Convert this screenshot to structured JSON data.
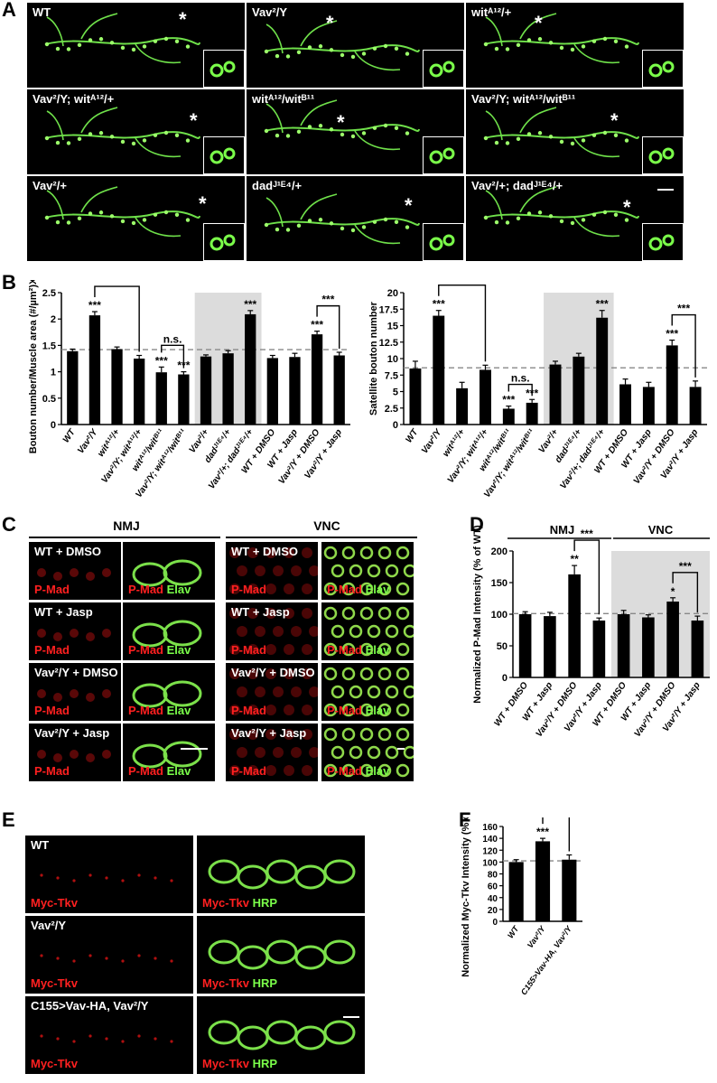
{
  "panel_letters": {
    "a": "A",
    "b": "B",
    "c": "C",
    "d": "D",
    "e": "E",
    "f": "F"
  },
  "panelA": {
    "tiles": [
      {
        "label": "WT",
        "star": "*"
      },
      {
        "label": "Vav²/Y",
        "star": "*"
      },
      {
        "label": "witᴬ¹²/+",
        "star": "*"
      },
      {
        "label": "Vav²/Y; witᴬ¹²/+",
        "star": "*"
      },
      {
        "label": "witᴬ¹²/witᴮ¹¹",
        "star": "*"
      },
      {
        "label": "Vav²/Y; witᴬ¹²/witᴮ¹¹",
        "star": "*"
      },
      {
        "label": "Vav²/+",
        "star": "*"
      },
      {
        "label": "dadᴶ¹ᴱ⁴/+",
        "star": "*"
      },
      {
        "label": "Vav²/+; dadᴶ¹ᴱ⁴/+",
        "star": "*"
      }
    ]
  },
  "panelC": {
    "header_nmj": "NMJ",
    "header_vnc": "VNC",
    "rows": [
      "WT + DMSO",
      "WT + Jasp",
      "Vav²/Y + DMSO",
      "Vav²/Y + Jasp"
    ],
    "ch_red": "P-Mad",
    "ch_green": "Elav"
  },
  "panelE": {
    "rows": [
      "WT",
      "Vav²/Y",
      "C155>Vav-HA, Vav²/Y"
    ],
    "ch_red": "Myc-Tkv",
    "ch_green": "HRP"
  },
  "chart_data": [
    {
      "type": "bar",
      "panel": "B-left",
      "ylabel": "Bouton number/Muscle area (#/µm²)X10³",
      "ylim": [
        0,
        2.5
      ],
      "yticks": [
        "0",
        "0.5",
        "1",
        "1.5",
        "2",
        "2.5"
      ],
      "categories": [
        "WT",
        "Vav²/Y",
        "witᴬ¹²/+",
        "Vav²/Y; witᴬ¹²/+",
        "witᴬ¹²/witᴮ¹¹",
        "Vav²/Y; witᴬ¹²/witᴮ¹¹",
        "Vav²/+",
        "dadᴶ¹ᴱ⁴/+",
        "Vav²/+; dadᴶ¹ᴱ⁴/+",
        "WT + DMSO",
        "WT + Jasp",
        "Vav²/Y + DMSO",
        "Vav²/Y + Jasp"
      ],
      "values": [
        1.39,
        2.07,
        1.43,
        1.25,
        0.99,
        0.95,
        1.29,
        1.35,
        2.09,
        1.26,
        1.28,
        1.71,
        1.31
      ],
      "errors": [
        0.04,
        0.07,
        0.04,
        0.06,
        0.1,
        0.05,
        0.03,
        0.05,
        0.07,
        0.05,
        0.07,
        0.06,
        0.06
      ],
      "sig": [
        "",
        "***",
        "",
        "",
        "***",
        "***",
        "",
        "",
        "***",
        "",
        "",
        "***",
        ""
      ],
      "brackets": [
        {
          "from": 1,
          "to": 3,
          "label": "***"
        },
        {
          "from": 4,
          "to": 5,
          "label": "n.s."
        },
        {
          "from": 11,
          "to": 12,
          "label": "***"
        }
      ],
      "dashed_y": 1.42,
      "shaded": [
        6,
        8
      ]
    },
    {
      "type": "bar",
      "panel": "B-right",
      "ylabel": "Satellite bouton number",
      "ylim": [
        0,
        20
      ],
      "yticks": [
        "0",
        "2.5",
        "5",
        "7.5",
        "10",
        "12.5",
        "15",
        "17.5",
        "20"
      ],
      "categories": [
        "WT",
        "Vav²/Y",
        "witᴬ¹²/+",
        "Vav²/Y; witᴬ¹²/+",
        "witᴬ¹²/witᴮ¹¹",
        "Vav²/Y; witᴬ¹²/witᴮ¹¹",
        "Vav²/+",
        "dadᴶ¹ᴱ⁴/+",
        "Vav²/+; dadᴶ¹ᴱ⁴/+",
        "WT + DMSO",
        "WT + Jasp",
        "Vav²/Y + DMSO",
        "Vav²/Y + Jasp"
      ],
      "values": [
        8.5,
        16.5,
        5.5,
        8.3,
        2.4,
        3.3,
        9.1,
        10.3,
        16.2,
        6.1,
        5.7,
        12.0,
        5.7
      ],
      "errors": [
        1.1,
        0.8,
        0.9,
        0.7,
        0.4,
        0.5,
        0.5,
        0.5,
        1.1,
        0.8,
        0.7,
        0.8,
        0.9
      ],
      "sig": [
        "",
        "***",
        "",
        "",
        "***",
        "***",
        "",
        "",
        "***",
        "",
        "",
        "***",
        ""
      ],
      "brackets": [
        {
          "from": 1,
          "to": 3,
          "label": "***"
        },
        {
          "from": 4,
          "to": 5,
          "label": "n.s."
        },
        {
          "from": 11,
          "to": 12,
          "label": "***"
        }
      ],
      "dashed_y": 8.6,
      "shaded": [
        6,
        8
      ]
    },
    {
      "type": "bar",
      "panel": "D",
      "ylabel": "Normalized P-Mad Intensity (% of WT)",
      "ylim": [
        0,
        200
      ],
      "yticks": [
        "0",
        "50",
        "100",
        "150",
        "200"
      ],
      "group_labels": [
        "NMJ",
        "VNC"
      ],
      "categories": [
        "WT + DMSO",
        "WT + Jasp",
        "Vav²/Y + DMSO",
        "Vav²/Y + Jasp",
        "WT + DMSO",
        "WT + Jasp",
        "Vav²/Y + DMSO",
        "Vav²/Y + Jasp"
      ],
      "values": [
        100,
        97,
        163,
        90,
        100,
        95,
        120,
        90
      ],
      "errors": [
        4,
        6,
        14,
        4,
        6,
        4,
        6,
        7
      ],
      "sig": [
        "",
        "",
        "**",
        "",
        "",
        "",
        "*",
        ""
      ],
      "brackets": [
        {
          "from": 2,
          "to": 3,
          "label": "***"
        },
        {
          "from": 6,
          "to": 7,
          "label": "***"
        }
      ],
      "dashed_y": 101,
      "shaded": [
        4,
        7
      ]
    },
    {
      "type": "bar",
      "panel": "F",
      "ylabel": "Normalized Myc-Tkv Intensity (% of control)",
      "ylim": [
        0,
        160
      ],
      "yticks": [
        "0",
        "20",
        "40",
        "60",
        "80",
        "100",
        "120",
        "140",
        "160"
      ],
      "categories": [
        "WT",
        "Vav²/Y",
        "C155>Vav-HA, Vav²/Y"
      ],
      "values": [
        100,
        135,
        104
      ],
      "errors": [
        4,
        5,
        8
      ],
      "sig": [
        "",
        "***",
        ""
      ],
      "brackets": [
        {
          "from": 1,
          "to": 2,
          "label": "***"
        }
      ],
      "dashed_y": 102
    }
  ]
}
